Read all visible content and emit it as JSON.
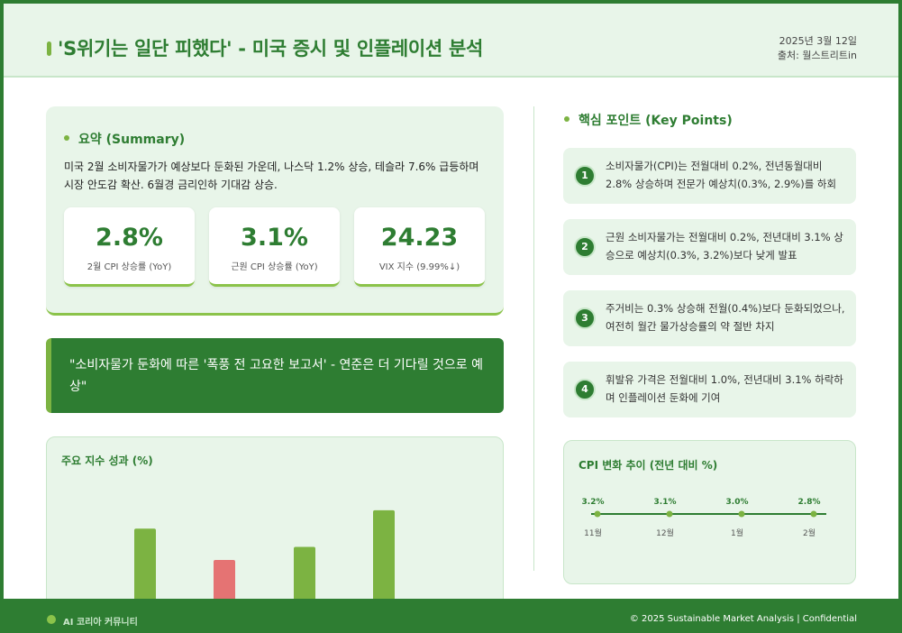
{
  "header": {
    "title": "'S위기는 일단 피했다' - 미국 증시 및 인플레이션 분석",
    "date": "2025년 3월 12일",
    "source": "출처: 월스트리트in"
  },
  "summary": {
    "heading": "요약 (Summary)",
    "text": "미국 2월 소비자물가가 예상보다 둔화된 가운데, 나스닥 1.2% 상승, 테슬라 7.6% 급등하며 시장 안도감 확산. 6월경 금리인하 기대감 상승.",
    "stats": [
      {
        "value": "2.8%",
        "label": "2월 CPI 상승률 (YoY)"
      },
      {
        "value": "3.1%",
        "label": "근원 CPI 상승률 (YoY)"
      },
      {
        "value": "24.23",
        "label": "VIX 지수 (9.99%↓)"
      }
    ]
  },
  "quote": {
    "text": "\"소비자물가 둔화에 따른 '폭풍 전 고요한 보고서' - 연준은 더 기다릴 것으로 예상\""
  },
  "index_chart": {
    "title": "주요 지수 성과 (%)"
  },
  "key_points": {
    "heading": "핵심 포인트 (Key Points)",
    "items": [
      {
        "num": "1",
        "text": "소비자물가(CPI)는 전월대비 0.2%, 전년동월대비 2.8% 상승하며 전문가 예상치(0.3%, 2.9%)를 하회"
      },
      {
        "num": "2",
        "text": "근원 소비자물가는 전월대비 0.2%, 전년대비 3.1% 상승으로 예상치(0.3%, 3.2%)보다 낮게 발표"
      },
      {
        "num": "3",
        "text": "주거비는 0.3% 상승해 전월(0.4%)보다 둔화되었으나, 여전히 월간 물가상승률의 약 절반 차지"
      },
      {
        "num": "4",
        "text": "휘발유 가격은 전월대비 1.0%, 전년대비 3.1% 하락하며 인플레이션 둔화에 기여"
      }
    ]
  },
  "cpi_trend": {
    "title": "CPI 변화 추이 (전년 대비 %)"
  },
  "chart_data": [
    {
      "type": "bar",
      "title": "주요 지수 성과 (%)",
      "categories": [
        "",
        "",
        "",
        ""
      ],
      "values": [
        1.2,
        -0.6,
        0.5,
        1.9
      ],
      "colors": [
        "#7cb342",
        "#e57373",
        "#7cb342",
        "#7cb342"
      ],
      "ylim": [
        -2.5,
        2.2
      ],
      "grid": false
    },
    {
      "type": "line",
      "title": "CPI 변화 추이 (전년 대비 %)",
      "categories": [
        "11월",
        "12월",
        "1월",
        "2월"
      ],
      "values": [
        3.2,
        3.1,
        3.0,
        2.8
      ],
      "data_labels": [
        "3.2%",
        "3.1%",
        "3.0%",
        "2.8%"
      ]
    }
  ],
  "footer": {
    "left": "AI 코리아 커뮤니티",
    "right": "© 2025 Sustainable Market Analysis | Confidential"
  }
}
